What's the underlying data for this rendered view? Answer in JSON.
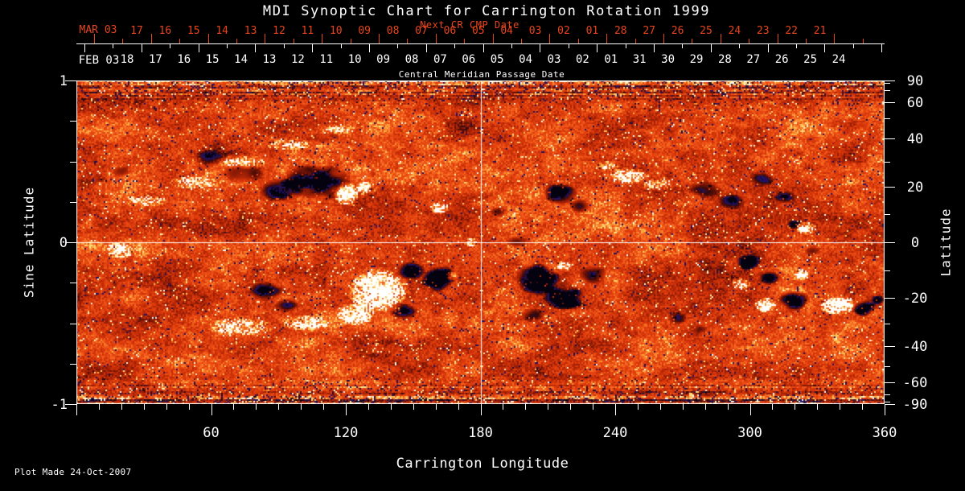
{
  "header": {
    "title": "MDI Synoptic Chart for Carrington Rotation 1999"
  },
  "footer": {
    "plot_made": "Plot Made 24-Oct-2007"
  },
  "colors": {
    "background": "#000000",
    "axis_text": "#ffffff",
    "next_cr_red": "#e8441c",
    "grid_line": "#ffffff"
  },
  "chart_data": {
    "type": "heatmap",
    "title": "MDI Synoptic Chart for Carrington Rotation 1999",
    "xlabel": "Carrington Longitude",
    "ylabel_left": "Sine Latitude",
    "ylabel_right": "Latitude",
    "x_range_deg": [
      0,
      360
    ],
    "sine_latitude_range": [
      -1,
      1
    ],
    "x_ticks_major": [
      60,
      120,
      180,
      240,
      300,
      360
    ],
    "x_tick_minor_step_deg": 10,
    "left_axis": {
      "major_ticks": [
        1,
        0,
        -1
      ],
      "major_tick_labels": [
        "1",
        "0",
        "-1"
      ],
      "minor_tick_step": 0.25
    },
    "right_axis": {
      "labeled_ticks_deg": [
        90,
        60,
        40,
        20,
        0,
        -20,
        -40,
        -60,
        -90
      ],
      "minor_ticks_deg": [
        80,
        70,
        50,
        30,
        10,
        -10,
        -30,
        -50,
        -70,
        -80
      ]
    },
    "gridlines": {
      "vertical_at_deg": 180,
      "horizontal_at_sine_lat": 0
    },
    "top_axis_next_cr": {
      "label": "Next CR CMP Date",
      "month": "MAR 03",
      "days": [
        "17",
        "16",
        "15",
        "14",
        "13",
        "12",
        "11",
        "10",
        "09",
        "08",
        "07",
        "06",
        "05",
        "04",
        "03",
        "02",
        "01",
        "28",
        "27",
        "26",
        "25",
        "24",
        "23",
        "22",
        "21"
      ]
    },
    "top_axis_cmp": {
      "label": "Central Meridian Passage Date",
      "month": "FEB 03",
      "days": [
        "18",
        "17",
        "16",
        "15",
        "14",
        "13",
        "12",
        "11",
        "10",
        "09",
        "08",
        "07",
        "06",
        "05",
        "04",
        "03",
        "02",
        "01",
        "31",
        "30",
        "29",
        "28",
        "27",
        "26",
        "25",
        "24"
      ]
    },
    "palette_stops": [
      [
        0.0,
        5,
        2,
        16
      ],
      [
        0.035,
        34,
        20,
        110
      ],
      [
        0.07,
        40,
        16,
        80
      ],
      [
        0.1,
        45,
        10,
        14
      ],
      [
        0.16,
        90,
        14,
        6
      ],
      [
        0.24,
        135,
        26,
        6
      ],
      [
        0.34,
        172,
        36,
        7
      ],
      [
        0.46,
        208,
        50,
        9
      ],
      [
        0.58,
        228,
        66,
        15
      ],
      [
        0.7,
        242,
        90,
        26
      ],
      [
        0.8,
        250,
        130,
        44
      ],
      [
        0.87,
        253,
        182,
        74
      ],
      [
        0.93,
        255,
        226,
        128
      ],
      [
        0.965,
        255,
        246,
        200
      ],
      [
        1.0,
        255,
        255,
        255
      ]
    ],
    "active_regions_fields": [
      "lon_deg",
      "sine_lat",
      "r_lon_deg",
      "r_sine_lat",
      "polarity",
      "strength"
    ],
    "active_regions": [
      [
        105.7,
        0.378,
        16.1,
        0.109,
        -1,
        0.9
      ],
      [
        91.3,
        0.328,
        10.7,
        0.075,
        -1,
        0.7
      ],
      [
        73.4,
        0.428,
        10.0,
        0.06,
        -1,
        0.55
      ],
      [
        59.1,
        0.527,
        7.9,
        0.05,
        -1,
        0.45
      ],
      [
        120.0,
        0.303,
        5.7,
        0.07,
        1,
        1.0
      ],
      [
        127.9,
        0.343,
        3.6,
        0.04,
        1,
        0.8
      ],
      [
        30.4,
        0.264,
        10.7,
        0.04,
        1,
        0.4
      ],
      [
        51.9,
        0.378,
        12.5,
        0.045,
        1,
        0.45
      ],
      [
        73.4,
        0.502,
        12.5,
        0.045,
        1,
        0.45
      ],
      [
        94.9,
        0.612,
        10.7,
        0.04,
        1,
        0.4
      ],
      [
        114.6,
        0.701,
        9.0,
        0.035,
        1,
        0.35
      ],
      [
        161.2,
        0.219,
        4.3,
        0.04,
        1,
        0.85
      ],
      [
        134.3,
        -0.294,
        14.3,
        0.139,
        1,
        0.95
      ],
      [
        123.6,
        -0.443,
        9.0,
        0.075,
        1,
        0.7
      ],
      [
        148.7,
        -0.169,
        7.2,
        0.06,
        -1,
        0.8
      ],
      [
        161.2,
        -0.219,
        7.9,
        0.08,
        -1,
        0.95
      ],
      [
        166.6,
        -0.204,
        2.9,
        0.03,
        1,
        0.9
      ],
      [
        145.1,
        -0.418,
        6.4,
        0.05,
        -1,
        0.6
      ],
      [
        84.2,
        -0.303,
        7.2,
        0.06,
        -1,
        0.7
      ],
      [
        93.1,
        -0.383,
        5.0,
        0.045,
        -1,
        0.6
      ],
      [
        73.4,
        -0.517,
        16.1,
        0.06,
        1,
        0.5
      ],
      [
        102.0,
        -0.493,
        12.5,
        0.05,
        1,
        0.45
      ],
      [
        19.0,
        -0.045,
        6.4,
        0.05,
        1,
        0.5
      ],
      [
        204.2,
        -0.219,
        10.0,
        0.09,
        -1,
        0.95
      ],
      [
        216.7,
        -0.343,
        9.0,
        0.08,
        -1,
        0.9
      ],
      [
        229.3,
        -0.194,
        6.4,
        0.06,
        -1,
        0.75
      ],
      [
        216.7,
        -0.144,
        3.6,
        0.035,
        1,
        0.7
      ],
      [
        202.4,
        -0.443,
        5.4,
        0.045,
        -1,
        0.55
      ],
      [
        214.9,
        0.303,
        7.9,
        0.07,
        -1,
        0.8
      ],
      [
        223.9,
        0.229,
        5.0,
        0.045,
        -1,
        0.6
      ],
      [
        245.4,
        0.413,
        10.0,
        0.05,
        1,
        0.65
      ],
      [
        257.9,
        0.363,
        7.2,
        0.04,
        1,
        0.55
      ],
      [
        236.4,
        0.478,
        5.4,
        0.035,
        1,
        0.45
      ],
      [
        279.4,
        0.328,
        7.2,
        0.05,
        -1,
        0.6
      ],
      [
        291.9,
        0.254,
        6.4,
        0.05,
        -1,
        0.6
      ],
      [
        304.5,
        0.393,
        5.7,
        0.045,
        -1,
        0.55
      ],
      [
        315.2,
        0.279,
        5.0,
        0.04,
        -1,
        0.5
      ],
      [
        324.4,
        0.09,
        5.0,
        0.04,
        1,
        0.85
      ],
      [
        318.8,
        0.114,
        3.6,
        0.03,
        -1,
        0.6
      ],
      [
        299.1,
        -0.119,
        5.7,
        0.05,
        -1,
        0.8
      ],
      [
        308.1,
        -0.219,
        5.0,
        0.045,
        -1,
        0.7
      ],
      [
        318.8,
        -0.353,
        7.2,
        0.065,
        -1,
        0.95
      ],
      [
        306.3,
        -0.383,
        5.0,
        0.05,
        1,
        0.95
      ],
      [
        295.5,
        -0.254,
        4.3,
        0.04,
        1,
        0.75
      ],
      [
        322.4,
        -0.194,
        3.6,
        0.035,
        1,
        0.6
      ],
      [
        327.0,
        -0.045,
        3.6,
        0.03,
        -1,
        0.5
      ],
      [
        338.5,
        -0.383,
        7.9,
        0.06,
        1,
        1.0
      ],
      [
        350.0,
        -0.403,
        5.0,
        0.05,
        -1,
        0.9
      ],
      [
        356.4,
        -0.353,
        2.9,
        0.03,
        -1,
        0.6
      ],
      [
        266.9,
        -0.468,
        4.3,
        0.04,
        -1,
        0.5
      ],
      [
        277.6,
        -0.532,
        3.6,
        0.03,
        -1,
        0.4
      ],
      [
        19.7,
        0.443,
        4.3,
        0.035,
        -1,
        0.5
      ],
      [
        10.7,
        0.393,
        2.9,
        0.025,
        -1,
        0.4
      ],
      [
        175.5,
        0.005,
        3.6,
        0.03,
        1,
        0.5
      ],
      [
        187.3,
        0.194,
        3.6,
        0.03,
        -1,
        0.45
      ],
      [
        195.2,
        0.005,
        4.3,
        0.035,
        -1,
        0.5
      ]
    ],
    "description": "Line-of-sight photospheric magnetic field synoptic map for Carrington rotation 1999; dark/navy = negative polarity, white/yellow = positive polarity, orange-red speckle = quiet-Sun noise."
  }
}
